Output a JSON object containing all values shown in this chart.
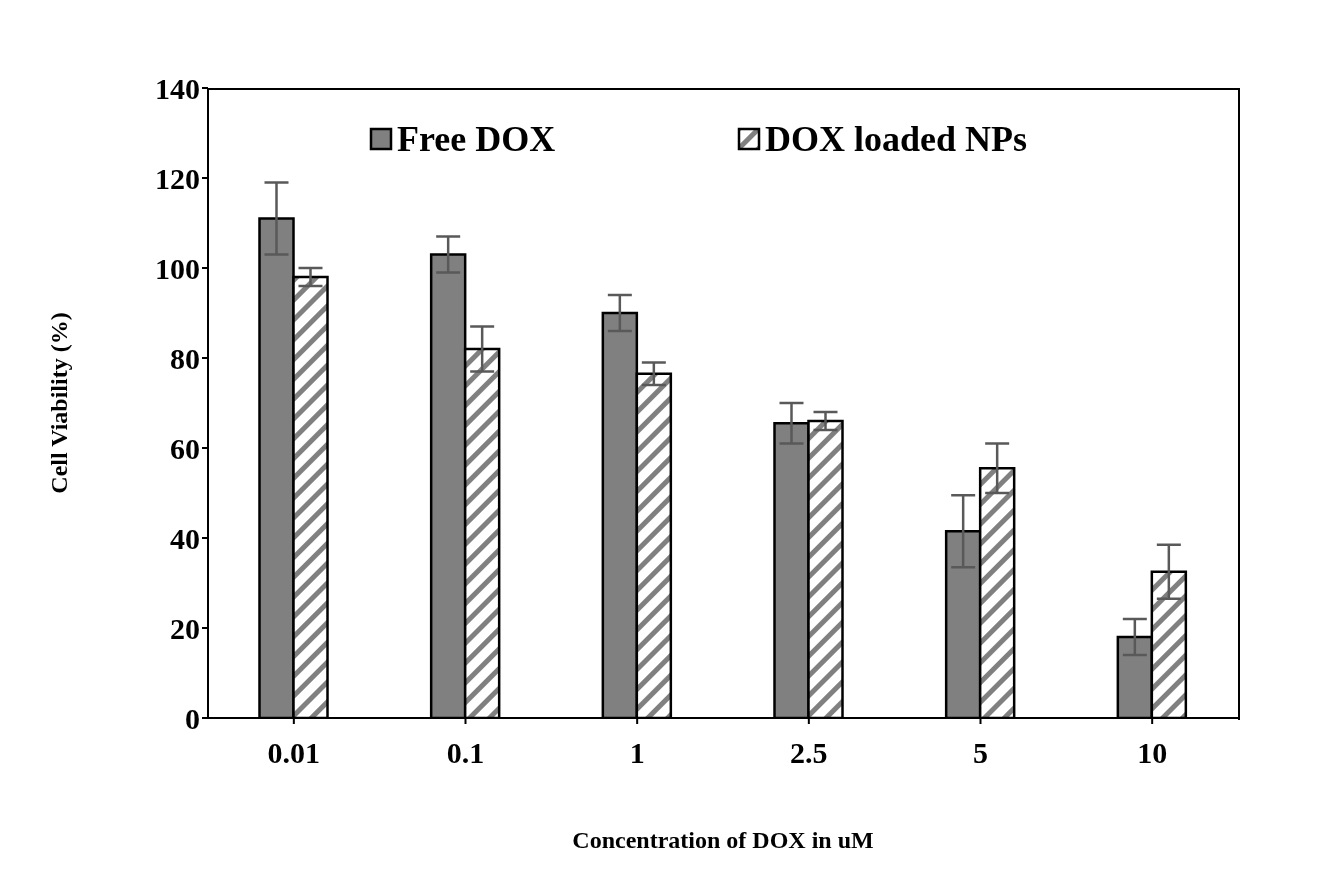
{
  "chart_data": {
    "type": "bar",
    "xlabel": "Concentration of DOX in uM",
    "ylabel": "Cell Viability (%)",
    "categories": [
      "0.01",
      "0.1",
      "1",
      "2.5",
      "5",
      "10"
    ],
    "series": [
      {
        "name": "Free DOX",
        "color": "#808080",
        "values": [
          111,
          103,
          90,
          65.5,
          41.5,
          18
        ],
        "errors": [
          8,
          4,
          4,
          4.5,
          8,
          4
        ]
      },
      {
        "name": "DOX loaded NPs",
        "color": "#808080",
        "values": [
          98,
          82,
          76.5,
          66,
          55.5,
          32.5
        ],
        "errors": [
          2,
          5,
          2.5,
          2,
          5.5,
          6
        ]
      }
    ],
    "ylim": [
      0,
      140
    ],
    "yticks": [
      0,
      20,
      40,
      60,
      80,
      100,
      120,
      140
    ],
    "grid": false,
    "legend": "top"
  }
}
